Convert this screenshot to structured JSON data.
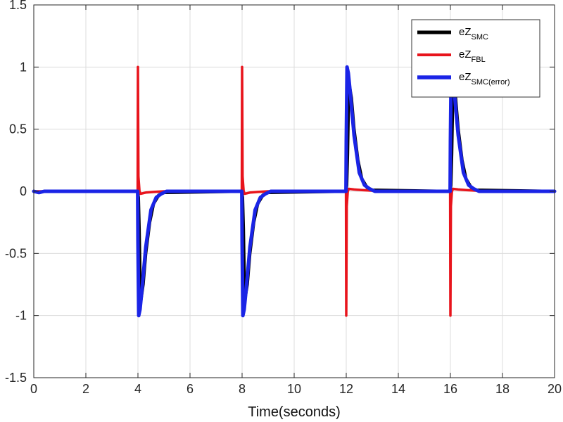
{
  "chart_data": {
    "type": "line",
    "title": "",
    "xlabel": "Time(seconds)",
    "ylabel": "",
    "xlim": [
      0,
      20
    ],
    "ylim": [
      -1.5,
      1.5
    ],
    "x_ticks": [
      0,
      2,
      4,
      6,
      8,
      10,
      12,
      14,
      16,
      18,
      20
    ],
    "y_ticks": [
      -1.5,
      -1,
      -0.5,
      0,
      0.5,
      1,
      1.5
    ],
    "x_tick_labels": [
      "0",
      "2",
      "4",
      "6",
      "8",
      "10",
      "12",
      "14",
      "16",
      "18",
      "20"
    ],
    "y_tick_labels": [
      "-1.5",
      "-1",
      "-0.5",
      "0",
      "0.5",
      "1",
      "1.5"
    ],
    "grid": true,
    "legend_position": "top-right",
    "series": [
      {
        "name": "eZ_SMC",
        "label_main": "eZ",
        "label_sub": "SMC",
        "color": "#000000",
        "x": [
          0,
          0.2,
          0.4,
          3.99,
          4.02,
          4.05,
          4.1,
          4.2,
          4.3,
          4.45,
          4.6,
          4.8,
          5.0,
          7.99,
          8.02,
          8.05,
          8.1,
          8.2,
          8.3,
          8.45,
          8.6,
          8.8,
          9.0,
          11.99,
          12.02,
          12.05,
          12.1,
          12.2,
          12.3,
          12.45,
          12.6,
          12.8,
          13.0,
          15.99,
          16.02,
          16.05,
          16.1,
          16.2,
          16.3,
          16.45,
          16.6,
          16.8,
          17.0,
          20
        ],
        "y": [
          0,
          -0.01,
          0,
          0,
          -0.05,
          -0.3,
          -0.9,
          -0.75,
          -0.5,
          -0.25,
          -0.1,
          -0.03,
          -0.01,
          0,
          -0.05,
          -0.3,
          -0.88,
          -0.75,
          -0.5,
          -0.25,
          -0.1,
          -0.03,
          -0.01,
          0,
          0.05,
          0.3,
          0.88,
          0.75,
          0.5,
          0.25,
          0.1,
          0.03,
          0.01,
          0,
          0.05,
          0.3,
          0.88,
          0.75,
          0.5,
          0.25,
          0.1,
          0.03,
          0.01,
          0
        ]
      },
      {
        "name": "eZ_FBL",
        "label_main": "eZ",
        "label_sub": "FBL",
        "color": "#e8141c",
        "x": [
          0,
          3.99,
          4.0,
          4.02,
          4.06,
          4.1,
          4.3,
          4.6,
          5.0,
          7.99,
          8.0,
          8.02,
          8.06,
          8.1,
          8.3,
          8.6,
          9.0,
          11.99,
          12.0,
          12.02,
          12.06,
          12.1,
          12.3,
          12.6,
          13.0,
          15.99,
          16.0,
          16.02,
          16.06,
          16.1,
          16.3,
          16.6,
          17.0,
          20
        ],
        "y": [
          0,
          0,
          1.0,
          0.12,
          0.0,
          -0.02,
          -0.01,
          -0.005,
          0,
          0,
          1.0,
          0.12,
          0.0,
          -0.02,
          -0.01,
          -0.005,
          0,
          0,
          -1.0,
          -0.12,
          0.0,
          0.02,
          0.015,
          0.01,
          0.005,
          0,
          -1.0,
          -0.12,
          0.0,
          0.02,
          0.015,
          0.01,
          0.005,
          0
        ]
      },
      {
        "name": "eZ_SMC(error)",
        "label_main": "eZ",
        "label_sub": "SMC(error)",
        "color": "#1a24e6",
        "x": [
          0,
          0.2,
          0.4,
          3.99,
          4.0,
          4.03,
          4.08,
          4.15,
          4.3,
          4.5,
          4.7,
          4.9,
          5.1,
          7.99,
          8.0,
          8.03,
          8.08,
          8.15,
          8.3,
          8.5,
          8.7,
          8.9,
          9.1,
          11.99,
          12.0,
          12.03,
          12.08,
          12.15,
          12.3,
          12.5,
          12.7,
          12.9,
          13.1,
          15.99,
          16.0,
          16.03,
          16.08,
          16.15,
          16.3,
          16.5,
          16.7,
          16.9,
          17.1,
          20
        ],
        "y": [
          0,
          -0.01,
          0,
          0,
          -0.4,
          -1.0,
          -0.95,
          -0.8,
          -0.45,
          -0.15,
          -0.05,
          -0.02,
          0,
          0,
          -0.4,
          -1.0,
          -0.95,
          -0.8,
          -0.45,
          -0.15,
          -0.05,
          -0.02,
          0,
          0,
          0.4,
          1.0,
          0.95,
          0.8,
          0.45,
          0.15,
          0.05,
          0.02,
          0,
          0,
          0.4,
          1.0,
          0.95,
          0.8,
          0.45,
          0.15,
          0.05,
          0.02,
          0,
          0
        ]
      }
    ]
  }
}
